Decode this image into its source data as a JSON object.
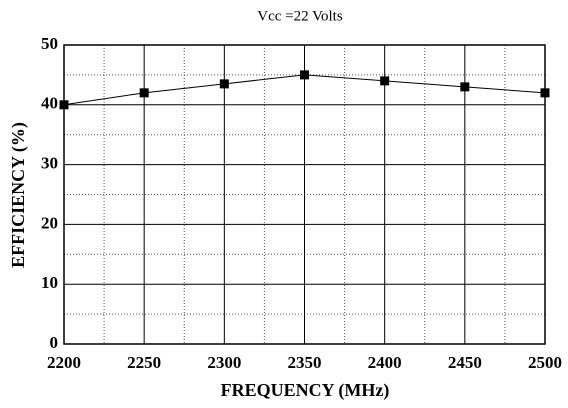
{
  "chart_data": {
    "type": "line",
    "title": "Vcc =22  Volts",
    "x_label": "FREQUENCY (MHz)",
    "y_label": "EFFICIENCY (%)",
    "x": [
      2200,
      2250,
      2300,
      2350,
      2400,
      2450,
      2500
    ],
    "series": [
      {
        "name": "Efficiency",
        "color": "#000000",
        "values": [
          40,
          42,
          43.5,
          45,
          44,
          43,
          42
        ]
      }
    ],
    "xlim": [
      2200,
      2500
    ],
    "xticks": [
      2200,
      2250,
      2300,
      2350,
      2400,
      2450,
      2500
    ],
    "ylim": [
      0,
      50
    ],
    "yticks": [
      0,
      10,
      20,
      30,
      40,
      50
    ],
    "xminor": [
      2225,
      2275,
      2325,
      2375,
      2425,
      2475
    ],
    "yminor": [
      5,
      15,
      25,
      35,
      45
    ],
    "grid": true
  }
}
